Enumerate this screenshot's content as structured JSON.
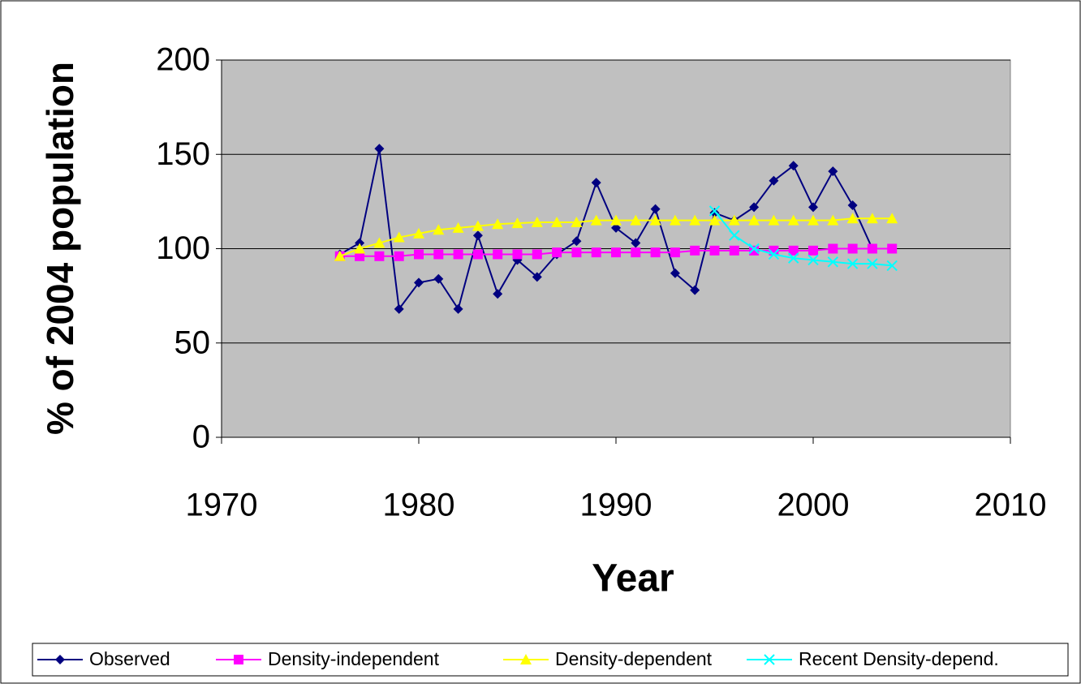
{
  "chart_data": {
    "type": "line",
    "xlabel": "Year",
    "ylabel": "% of 2004 population",
    "xlim": [
      1970,
      2010
    ],
    "xticks": [
      1970,
      1980,
      1990,
      2000,
      2010
    ],
    "ylim": [
      0,
      200
    ],
    "yticks": [
      0,
      50,
      100,
      150,
      200
    ],
    "grid": true,
    "legend": "bottom",
    "series": [
      {
        "name": "Observed",
        "color": "#000080",
        "marker": "diamond",
        "x": [
          1976,
          1977,
          1978,
          1979,
          1980,
          1981,
          1982,
          1983,
          1984,
          1985,
          1986,
          1987,
          1988,
          1989,
          1990,
          1991,
          1992,
          1993,
          1994,
          1995,
          1996,
          1997,
          1998,
          1999,
          2000,
          2001,
          2002,
          2003,
          2004
        ],
        "values": [
          97,
          103,
          153,
          68,
          82,
          84,
          68,
          107,
          76,
          94,
          85,
          97,
          104,
          135,
          111,
          103,
          121,
          87,
          78,
          119,
          115,
          122,
          136,
          144,
          122,
          141,
          123,
          100,
          100
        ]
      },
      {
        "name": "Density-independent",
        "color": "#ff00ff",
        "marker": "square",
        "x": [
          1976,
          1977,
          1978,
          1979,
          1980,
          1981,
          1982,
          1983,
          1984,
          1985,
          1986,
          1987,
          1988,
          1989,
          1990,
          1991,
          1992,
          1993,
          1994,
          1995,
          1996,
          1997,
          1998,
          1999,
          2000,
          2001,
          2002,
          2003,
          2004
        ],
        "values": [
          96,
          96,
          96,
          96,
          97,
          97,
          97,
          97,
          97,
          97,
          97,
          98,
          98,
          98,
          98,
          98,
          98,
          98,
          99,
          99,
          99,
          99,
          99,
          99,
          99,
          100,
          100,
          100,
          100
        ]
      },
      {
        "name": "Density-dependent",
        "color": "#ffff00",
        "marker": "triangle",
        "x": [
          1976,
          1977,
          1978,
          1979,
          1980,
          1981,
          1982,
          1983,
          1984,
          1985,
          1986,
          1987,
          1988,
          1989,
          1990,
          1991,
          1992,
          1993,
          1994,
          1995,
          1996,
          1997,
          1998,
          1999,
          2000,
          2001,
          2002,
          2003,
          2004
        ],
        "values": [
          96,
          100,
          103,
          106,
          108,
          110,
          111,
          112,
          113,
          113.5,
          114,
          114,
          114,
          115,
          115,
          115,
          115,
          115,
          115,
          115,
          115,
          115,
          115,
          115,
          115,
          115,
          116,
          116,
          116
        ]
      },
      {
        "name": "Recent Density-depend.",
        "color": "#00ffff",
        "marker": "x",
        "x": [
          1995,
          1996,
          1997,
          1998,
          1999,
          2000,
          2001,
          2002,
          2003,
          2004
        ],
        "values": [
          120,
          107,
          100,
          97,
          95,
          94,
          93,
          92,
          92,
          91
        ]
      }
    ]
  }
}
